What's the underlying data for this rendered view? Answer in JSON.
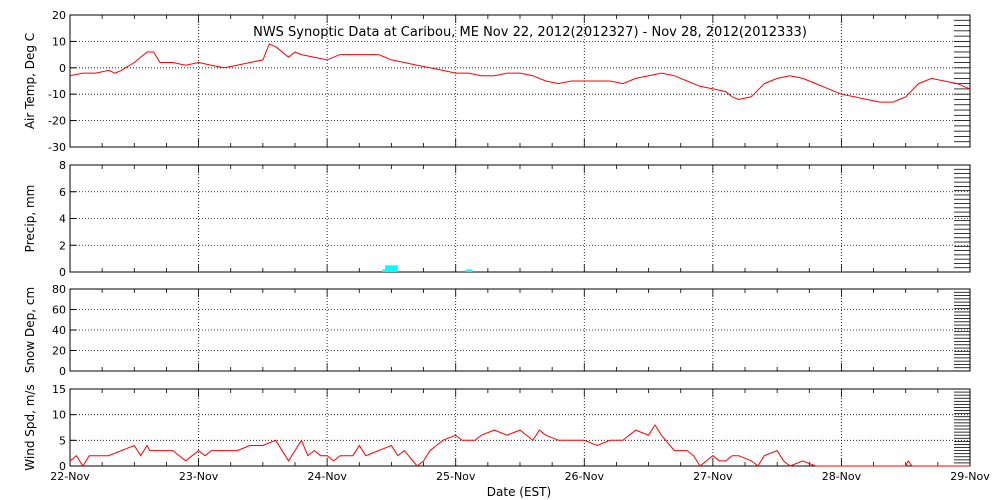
{
  "title": "NWS Synoptic Data at Caribou, ME    Nov 22, 2012(2012327) - Nov 28, 2012(2012333)",
  "xlabel": "Date (EST)",
  "x_ticks": [
    "22-Nov",
    "23-Nov",
    "24-Nov",
    "25-Nov",
    "26-Nov",
    "27-Nov",
    "28-Nov",
    "29-Nov"
  ],
  "colors": {
    "line": "#ff0000",
    "precip": "#00ffff",
    "axis": "#000000"
  },
  "chart_data": [
    {
      "type": "line",
      "ylabel": "Air Temp, Deg C",
      "ylim": [
        -30,
        20
      ],
      "yticks": [
        -30,
        -20,
        -10,
        0,
        10,
        20
      ],
      "grid": true,
      "x_unit": "days since 22-Nov 00:00 EST",
      "series": [
        {
          "name": "",
          "x": [
            0,
            0.1,
            0.2,
            0.3,
            0.35,
            0.4,
            0.5,
            0.6,
            0.65,
            0.7,
            0.8,
            0.9,
            1.0,
            1.1,
            1.2,
            1.3,
            1.4,
            1.5,
            1.55,
            1.6,
            1.7,
            1.75,
            1.8,
            1.9,
            2.0,
            2.1,
            2.2,
            2.3,
            2.4,
            2.5,
            2.6,
            2.7,
            2.8,
            2.9,
            3.0,
            3.1,
            3.2,
            3.3,
            3.4,
            3.5,
            3.6,
            3.7,
            3.8,
            3.9,
            4.0,
            4.1,
            4.2,
            4.3,
            4.4,
            4.5,
            4.6,
            4.7,
            4.8,
            4.9,
            5.0,
            5.1,
            5.15,
            5.2,
            5.3,
            5.4,
            5.5,
            5.6,
            5.7,
            5.8,
            5.9,
            6.0,
            6.1,
            6.2,
            6.3,
            6.4,
            6.5,
            6.6,
            6.7,
            6.8,
            6.9,
            7.0
          ],
          "values": [
            -3,
            -2,
            -2,
            -1,
            -2,
            -1,
            2,
            6,
            6,
            2,
            2,
            1,
            2,
            1,
            0,
            1,
            2,
            3,
            9,
            8,
            4,
            6,
            5,
            4,
            3,
            5,
            5,
            5,
            5,
            3,
            2,
            1,
            0,
            -1,
            -2,
            -2,
            -3,
            -3,
            -2,
            -2,
            -3,
            -5,
            -6,
            -5,
            -5,
            -5,
            -5,
            -6,
            -4,
            -3,
            -2,
            -3,
            -5,
            -7,
            -8,
            -9,
            -11,
            -12,
            -11,
            -6,
            -4,
            -3,
            -4,
            -6,
            -8,
            -10,
            -11,
            -12,
            -13,
            -13,
            -11,
            -6,
            -4,
            -5,
            -6,
            -8
          ]
        }
      ]
    },
    {
      "type": "bar",
      "ylabel": "Precip, mm",
      "ylim": [
        0,
        8
      ],
      "yticks": [
        0,
        2,
        4,
        6,
        8
      ],
      "grid": true,
      "x_unit": "days since 22-Nov 00:00 EST",
      "bars": [
        {
          "x": 2.43,
          "width": 0.02,
          "value": 0.2
        },
        {
          "x": 2.45,
          "width": 0.1,
          "value": 0.5
        },
        {
          "x": 3.08,
          "width": 0.05,
          "value": 0.2
        }
      ]
    },
    {
      "type": "line",
      "ylabel": "Snow Dep, cm",
      "ylim": [
        0,
        80
      ],
      "yticks": [
        0,
        20,
        40,
        60,
        80
      ],
      "grid": true,
      "series": []
    },
    {
      "type": "line",
      "ylabel": "Wind Spd, m/s",
      "ylim": [
        0,
        15
      ],
      "yticks": [
        0,
        5,
        10,
        15
      ],
      "grid": true,
      "x_unit": "days since 22-Nov 00:00 EST",
      "series": [
        {
          "name": "",
          "x": [
            0,
            0.05,
            0.1,
            0.15,
            0.2,
            0.3,
            0.4,
            0.5,
            0.55,
            0.6,
            0.62,
            0.7,
            0.8,
            0.9,
            0.95,
            1.0,
            1.05,
            1.1,
            1.2,
            1.3,
            1.4,
            1.5,
            1.6,
            1.7,
            1.8,
            1.85,
            1.9,
            1.95,
            2.0,
            2.05,
            2.1,
            2.2,
            2.25,
            2.3,
            2.4,
            2.5,
            2.55,
            2.6,
            2.7,
            2.75,
            2.8,
            2.85,
            2.9,
            3.0,
            3.05,
            3.1,
            3.15,
            3.2,
            3.3,
            3.4,
            3.5,
            3.6,
            3.65,
            3.7,
            3.8,
            3.9,
            3.95,
            4.0,
            4.1,
            4.2,
            4.3,
            4.4,
            4.5,
            4.55,
            4.6,
            4.7,
            4.8,
            4.85,
            4.9,
            5.0,
            5.05,
            5.1,
            5.15,
            5.2,
            5.3,
            5.35,
            5.4,
            5.5,
            5.55,
            5.6,
            5.7,
            5.8,
            5.85,
            5.9,
            6.0,
            6.1,
            6.2,
            6.3,
            6.4,
            6.5,
            6.52,
            6.55,
            6.6,
            6.7,
            6.8,
            6.9,
            7.0
          ],
          "values": [
            1,
            2,
            0,
            2,
            2,
            2,
            3,
            4,
            2,
            4,
            3,
            3,
            3,
            1,
            2,
            3,
            2,
            3,
            3,
            3,
            4,
            4,
            5,
            1,
            5,
            2,
            3,
            2,
            2,
            1,
            2,
            2,
            4,
            2,
            3,
            4,
            2,
            3,
            0,
            1,
            3,
            4,
            5,
            6,
            5,
            5,
            5,
            6,
            7,
            6,
            7,
            5,
            7,
            6,
            5,
            5,
            5,
            5,
            4,
            5,
            5,
            7,
            6,
            8,
            6,
            3,
            3,
            2,
            0,
            2,
            1,
            1,
            2,
            2,
            1,
            0,
            2,
            3,
            1,
            0,
            1,
            0,
            0,
            0,
            0,
            0,
            0,
            0,
            0,
            0,
            1,
            0,
            0,
            0,
            0,
            0,
            0
          ]
        }
      ]
    }
  ]
}
